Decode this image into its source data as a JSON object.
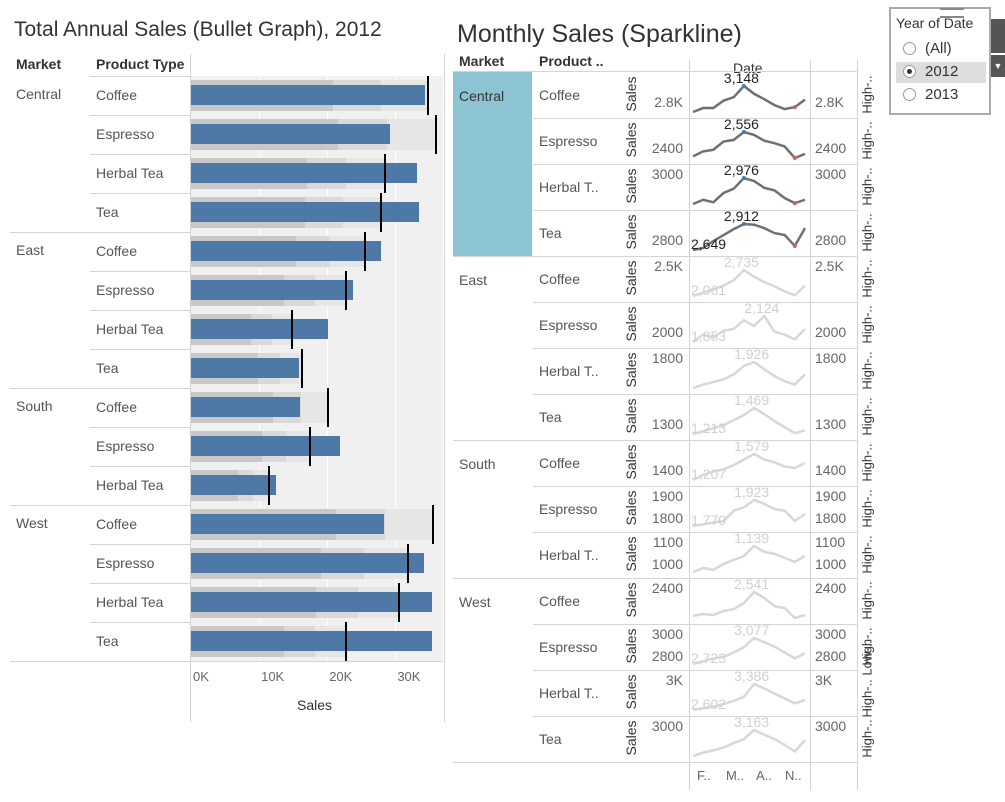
{
  "bullet": {
    "title": "Total Annual Sales (Bullet Graph), 2012",
    "headers": {
      "market": "Market",
      "product": "Product Type"
    },
    "axis_label": "Sales",
    "ticks": [
      "0K",
      "10K",
      "20K",
      "30K"
    ],
    "colors": {
      "bar": "#4e79a7",
      "band_dark": "#c8c8c8",
      "band_mid": "#d9d9d9",
      "band_light": "#e6e6e6",
      "bg": "#f0f0f0",
      "target": "#000000"
    }
  },
  "spark": {
    "title": "Monthly Sales (Sparkline)",
    "headers": {
      "market": "Market",
      "product": "Product ..",
      "date": "Date"
    },
    "measure": "Sales",
    "month_ticks": [
      "F..",
      "M..",
      "A..",
      "N.."
    ],
    "highlight_color": "#8cc4d4"
  },
  "filter": {
    "title": "Year of Date",
    "options": [
      {
        "label": "(All)",
        "selected": false
      },
      {
        "label": "2012",
        "selected": true
      },
      {
        "label": "2013",
        "selected": false
      }
    ]
  },
  "chart_data": [
    {
      "type": "bar",
      "title": "Total Annual Sales (Bullet Graph), 2012",
      "xlabel": "Sales",
      "xlim": [
        0,
        37000
      ],
      "rows": [
        {
          "market": "Central",
          "product": "Coffee",
          "value": 34300,
          "target": 34800
        },
        {
          "market": "",
          "product": "Espresso",
          "value": 29200,
          "target": 35900
        },
        {
          "market": "",
          "product": "Herbal Tea",
          "value": 33200,
          "target": 28500
        },
        {
          "market": "",
          "product": "Tea",
          "value": 33500,
          "target": 27900
        },
        {
          "market": "East",
          "product": "Coffee",
          "value": 27900,
          "target": 25600
        },
        {
          "market": "",
          "product": "Espresso",
          "value": 23800,
          "target": 22800
        },
        {
          "market": "",
          "product": "Herbal Tea",
          "value": 20100,
          "target": 14800
        },
        {
          "market": "",
          "product": "Tea",
          "value": 15800,
          "target": 16300
        },
        {
          "market": "South",
          "product": "Coffee",
          "value": 16000,
          "target": 20100
        },
        {
          "market": "",
          "product": "Espresso",
          "value": 21900,
          "target": 17400
        },
        {
          "market": "",
          "product": "Herbal Tea",
          "value": 12500,
          "target": 11400
        },
        {
          "market": "West",
          "product": "Coffee",
          "value": 28300,
          "target": 35600
        },
        {
          "market": "",
          "product": "Espresso",
          "value": 34200,
          "target": 31800
        },
        {
          "market": "",
          "product": "Herbal Tea",
          "value": 35400,
          "target": 30600
        },
        {
          "market": "",
          "product": "Tea",
          "value": 35400,
          "target": 22700
        }
      ]
    },
    {
      "type": "line",
      "title": "Monthly Sales (Sparkline)",
      "ylabel": "Sales",
      "x": [
        "Jan",
        "Feb",
        "Mar",
        "Apr",
        "May",
        "Jun",
        "Jul",
        "Aug",
        "Sep",
        "Oct",
        "Nov",
        "Dec"
      ],
      "rows": [
        {
          "market": "Central",
          "product": "Coffee",
          "tick_upper": "",
          "tick_lower": "2.8K",
          "right_label": "High-..",
          "max_label": "3,148",
          "min_label": "",
          "highlight": true,
          "values": [
            2620,
            2700,
            2700,
            2850,
            2920,
            3148,
            2990,
            2880,
            2760,
            2680,
            2720,
            2870
          ]
        },
        {
          "market": "",
          "product": "Espresso",
          "tick_upper": "",
          "tick_lower": "2400",
          "right_label": "High-..",
          "max_label": "2,556",
          "min_label": "",
          "highlight": true,
          "values": [
            2260,
            2320,
            2340,
            2440,
            2460,
            2556,
            2520,
            2450,
            2420,
            2380,
            2240,
            2290
          ]
        },
        {
          "market": "",
          "product": "Herbal T..",
          "tick_upper": "3000",
          "tick_lower": "",
          "right_label": "High-..",
          "max_label": "2,976",
          "min_label": "",
          "highlight": true,
          "values": [
            2670,
            2720,
            2690,
            2800,
            2850,
            2976,
            2940,
            2860,
            2830,
            2740,
            2680,
            2720
          ]
        },
        {
          "market": "",
          "product": "Tea",
          "tick_upper": "",
          "tick_lower": "2800",
          "right_label": "High-..",
          "max_label": "2,912",
          "min_label": "2,649",
          "highlight": true,
          "values": [
            2649,
            2670,
            2740,
            2800,
            2860,
            2912,
            2905,
            2870,
            2820,
            2800,
            2690,
            2870
          ]
        },
        {
          "market": "East",
          "product": "Coffee",
          "tick_upper": "2.5K",
          "tick_lower": "",
          "right_label": "High-..",
          "max_label": "2,735",
          "min_label": "2,061",
          "highlight": false,
          "values": [
            2061,
            2150,
            2230,
            2330,
            2470,
            2735,
            2560,
            2420,
            2310,
            2180,
            2080,
            2330
          ]
        },
        {
          "market": "",
          "product": "Espresso",
          "tick_upper": "",
          "tick_lower": "2000",
          "right_label": "High-..",
          "max_label": "2,124",
          "min_label": "1,853",
          "highlight": false,
          "values": [
            1853,
            1930,
            1900,
            1970,
            1990,
            2080,
            2020,
            2124,
            1960,
            1930,
            1880,
            1990
          ]
        },
        {
          "market": "",
          "product": "Herbal T..",
          "tick_upper": "1800",
          "tick_lower": "",
          "right_label": "High-..",
          "max_label": "1,926",
          "min_label": "",
          "highlight": false,
          "values": [
            1620,
            1660,
            1690,
            1720,
            1780,
            1880,
            1926,
            1840,
            1760,
            1700,
            1660,
            1780
          ]
        },
        {
          "market": "",
          "product": "Tea",
          "tick_upper": "",
          "tick_lower": "1300",
          "right_label": "High-..",
          "max_label": "1,469",
          "min_label": "1,213",
          "highlight": false,
          "values": [
            1213,
            1240,
            1270,
            1300,
            1350,
            1400,
            1469,
            1410,
            1340,
            1280,
            1220,
            1250
          ]
        },
        {
          "market": "South",
          "product": "Coffee",
          "tick_upper": "",
          "tick_lower": "1400",
          "right_label": "High-..",
          "max_label": "1,579",
          "min_label": "1,207",
          "highlight": false,
          "values": [
            1207,
            1280,
            1330,
            1360,
            1420,
            1500,
            1579,
            1500,
            1460,
            1400,
            1380,
            1450
          ]
        },
        {
          "market": "",
          "product": "Espresso",
          "tick_upper": "1900",
          "tick_lower": "1800",
          "right_label": "High-..",
          "max_label": "1,923",
          "min_label": "1,770",
          "highlight": false,
          "values": [
            1770,
            1780,
            1790,
            1800,
            1860,
            1880,
            1923,
            1900,
            1870,
            1860,
            1800,
            1840
          ]
        },
        {
          "market": "",
          "product": "Herbal T..",
          "tick_upper": "1100",
          "tick_lower": "1000",
          "right_label": "High-..",
          "max_label": "1,139",
          "min_label": "",
          "highlight": false,
          "values": [
            1010,
            1030,
            1020,
            1050,
            1070,
            1090,
            1139,
            1110,
            1100,
            1080,
            1060,
            1090
          ]
        },
        {
          "market": "West",
          "product": "Coffee",
          "tick_upper": "2400",
          "tick_lower": "",
          "right_label": "High-..",
          "max_label": "2,541",
          "min_label": "",
          "highlight": false,
          "values": [
            2300,
            2320,
            2310,
            2350,
            2370,
            2430,
            2541,
            2480,
            2400,
            2380,
            2280,
            2310
          ]
        },
        {
          "market": "",
          "product": "Espresso",
          "tick_upper": "3000",
          "tick_lower": "2800",
          "right_label": "High-..",
          "max_label": "3,077",
          "min_label": "2,723",
          "highlight": false,
          "values": [
            2723,
            2760,
            2800,
            2820,
            2880,
            2950,
            3077,
            3020,
            2960,
            2880,
            2800,
            2870
          ]
        },
        {
          "market": "",
          "product": "Herbal T..",
          "tick_upper": "3K",
          "tick_lower": "",
          "right_label": "High-.. Low-..",
          "max_label": "3,386",
          "min_label": "2,602",
          "highlight": false,
          "values": [
            2602,
            2660,
            2700,
            2780,
            2880,
            3000,
            3386,
            3250,
            3100,
            2950,
            2800,
            2900
          ]
        },
        {
          "market": "",
          "product": "Tea",
          "tick_upper": "3000",
          "tick_lower": "",
          "right_label": "High-..",
          "max_label": "3,163",
          "min_label": "",
          "highlight": false,
          "values": [
            2700,
            2760,
            2800,
            2850,
            2930,
            3000,
            3163,
            3080,
            3000,
            2900,
            2780,
            2980
          ]
        }
      ]
    }
  ]
}
